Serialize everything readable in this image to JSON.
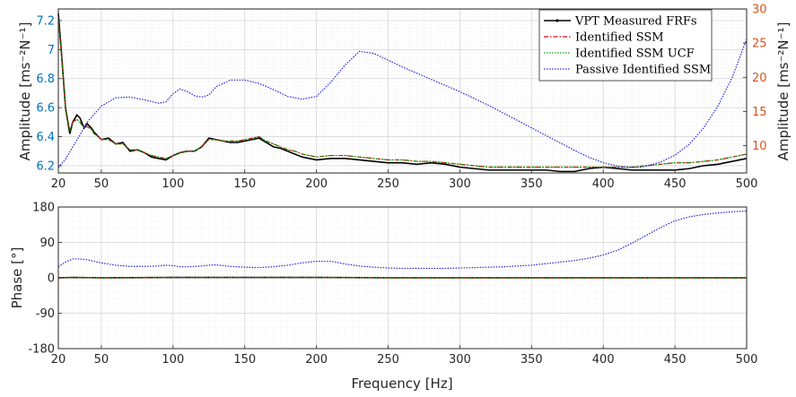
{
  "chart_data": [
    {
      "type": "line",
      "panel": "amplitude",
      "title": "",
      "xlabel": "",
      "ylabel_left": "Amplitude [ms⁻²N⁻¹]",
      "ylabel_right": "Amplitude [ms⁻²N⁻¹]",
      "left_axis_color": "#0072BD",
      "right_axis_color": "#D95319",
      "xlim": [
        20,
        500
      ],
      "ylim_left": [
        6.15,
        7.28
      ],
      "ylim_right": [
        6,
        30
      ],
      "xticks": [
        "20",
        "50",
        "100",
        "150",
        "200",
        "250",
        "300",
        "350",
        "400",
        "450",
        "500"
      ],
      "yticks_left": [
        "6.2",
        "6.4",
        "6.6",
        "6.8",
        "7",
        "7.2"
      ],
      "yticks_right": [
        "10",
        "15",
        "20",
        "25",
        "30"
      ],
      "grid": true,
      "legend_position": "top-right",
      "series": [
        {
          "name": "VPT Measured FRFs",
          "color": "#000000",
          "style": "solid",
          "axis": "left",
          "x": [
            20,
            22,
            25,
            28,
            30,
            33,
            35,
            38,
            40,
            43,
            45,
            48,
            50,
            55,
            60,
            65,
            70,
            75,
            80,
            85,
            90,
            95,
            100,
            105,
            110,
            115,
            120,
            125,
            130,
            135,
            140,
            145,
            150,
            155,
            160,
            165,
            170,
            175,
            180,
            185,
            190,
            200,
            210,
            220,
            230,
            240,
            250,
            260,
            270,
            280,
            290,
            300,
            310,
            320,
            330,
            340,
            350,
            360,
            370,
            380,
            390,
            400,
            410,
            420,
            430,
            440,
            450,
            460,
            470,
            480,
            490,
            500
          ],
          "y": [
            7.25,
            7.0,
            6.6,
            6.42,
            6.5,
            6.55,
            6.53,
            6.46,
            6.49,
            6.46,
            6.43,
            6.4,
            6.38,
            6.39,
            6.35,
            6.36,
            6.3,
            6.31,
            6.29,
            6.26,
            6.25,
            6.24,
            6.27,
            6.29,
            6.3,
            6.3,
            6.33,
            6.39,
            6.38,
            6.37,
            6.36,
            6.36,
            6.37,
            6.38,
            6.39,
            6.36,
            6.33,
            6.32,
            6.3,
            6.28,
            6.26,
            6.24,
            6.25,
            6.25,
            6.24,
            6.23,
            6.22,
            6.22,
            6.21,
            6.22,
            6.21,
            6.19,
            6.18,
            6.17,
            6.17,
            6.17,
            6.17,
            6.17,
            6.16,
            6.16,
            6.18,
            6.19,
            6.18,
            6.17,
            6.17,
            6.17,
            6.17,
            6.18,
            6.2,
            6.21,
            6.23,
            6.25
          ]
        },
        {
          "name": "Identified SSM",
          "color": "#E00000",
          "style": "dashdot",
          "axis": "left",
          "x": [
            20,
            22,
            25,
            28,
            30,
            33,
            35,
            38,
            40,
            43,
            45,
            48,
            50,
            55,
            60,
            65,
            70,
            75,
            80,
            85,
            90,
            95,
            100,
            105,
            110,
            115,
            120,
            125,
            130,
            135,
            140,
            145,
            150,
            155,
            160,
            165,
            170,
            175,
            180,
            185,
            190,
            200,
            210,
            220,
            230,
            240,
            250,
            260,
            270,
            280,
            290,
            300,
            310,
            320,
            330,
            340,
            350,
            360,
            370,
            380,
            390,
            400,
            410,
            420,
            430,
            440,
            450,
            460,
            470,
            480,
            490,
            500
          ],
          "y": [
            7.22,
            6.98,
            6.6,
            6.44,
            6.5,
            6.52,
            6.5,
            6.46,
            6.47,
            6.45,
            6.42,
            6.4,
            6.38,
            6.38,
            6.35,
            6.35,
            6.31,
            6.31,
            6.29,
            6.27,
            6.26,
            6.25,
            6.27,
            6.29,
            6.3,
            6.3,
            6.33,
            6.38,
            6.38,
            6.37,
            6.37,
            6.37,
            6.38,
            6.39,
            6.4,
            6.37,
            6.35,
            6.33,
            6.31,
            6.3,
            6.28,
            6.26,
            6.27,
            6.27,
            6.26,
            6.25,
            6.24,
            6.24,
            6.23,
            6.23,
            6.22,
            6.21,
            6.2,
            6.19,
            6.19,
            6.19,
            6.19,
            6.19,
            6.19,
            6.19,
            6.19,
            6.19,
            6.19,
            6.19,
            6.2,
            6.21,
            6.22,
            6.22,
            6.23,
            6.24,
            6.26,
            6.28
          ]
        },
        {
          "name": "Identified SSM UCF",
          "color": "#00A000",
          "style": "dotted",
          "axis": "left",
          "x": [
            20,
            22,
            25,
            28,
            30,
            33,
            35,
            38,
            40,
            43,
            45,
            48,
            50,
            55,
            60,
            65,
            70,
            75,
            80,
            85,
            90,
            95,
            100,
            105,
            110,
            115,
            120,
            125,
            130,
            135,
            140,
            145,
            150,
            155,
            160,
            165,
            170,
            175,
            180,
            185,
            190,
            200,
            210,
            220,
            230,
            240,
            250,
            260,
            270,
            280,
            290,
            300,
            310,
            320,
            330,
            340,
            350,
            360,
            370,
            380,
            390,
            400,
            410,
            420,
            430,
            440,
            450,
            460,
            470,
            480,
            490,
            500
          ],
          "y": [
            7.22,
            6.98,
            6.6,
            6.44,
            6.5,
            6.52,
            6.5,
            6.46,
            6.47,
            6.45,
            6.42,
            6.4,
            6.38,
            6.38,
            6.35,
            6.35,
            6.31,
            6.31,
            6.29,
            6.27,
            6.26,
            6.25,
            6.27,
            6.29,
            6.3,
            6.3,
            6.33,
            6.38,
            6.38,
            6.37,
            6.37,
            6.37,
            6.38,
            6.39,
            6.4,
            6.37,
            6.35,
            6.33,
            6.31,
            6.3,
            6.28,
            6.26,
            6.27,
            6.27,
            6.26,
            6.25,
            6.24,
            6.24,
            6.23,
            6.23,
            6.22,
            6.21,
            6.2,
            6.19,
            6.19,
            6.19,
            6.19,
            6.19,
            6.19,
            6.19,
            6.19,
            6.19,
            6.19,
            6.19,
            6.2,
            6.21,
            6.22,
            6.22,
            6.23,
            6.24,
            6.26,
            6.28
          ]
        },
        {
          "name": "Passive Identified SSM",
          "color": "#2020E0",
          "style": "dotted",
          "axis": "right",
          "x": [
            20,
            25,
            30,
            35,
            40,
            50,
            60,
            70,
            80,
            90,
            95,
            100,
            105,
            110,
            115,
            120,
            125,
            130,
            140,
            150,
            160,
            170,
            180,
            190,
            200,
            210,
            220,
            230,
            240,
            250,
            260,
            270,
            280,
            290,
            300,
            310,
            320,
            330,
            340,
            350,
            360,
            370,
            380,
            390,
            400,
            410,
            420,
            425,
            430,
            440,
            450,
            460,
            470,
            480,
            490,
            500
          ],
          "y": [
            6.8,
            8.0,
            9.8,
            11.5,
            13.4,
            15.8,
            17.0,
            17.1,
            16.7,
            16.2,
            16.4,
            17.6,
            18.3,
            17.9,
            17.3,
            17.1,
            17.4,
            18.6,
            19.6,
            19.6,
            19.1,
            18.2,
            17.2,
            16.8,
            17.2,
            19.3,
            21.8,
            23.8,
            23.5,
            22.5,
            21.5,
            20.6,
            19.7,
            18.8,
            17.9,
            16.9,
            15.9,
            14.8,
            13.7,
            12.6,
            11.5,
            10.4,
            9.3,
            8.3,
            7.5,
            7.0,
            6.8,
            6.8,
            7.0,
            7.6,
            8.6,
            10.2,
            12.6,
            15.8,
            20.0,
            25.6
          ]
        }
      ]
    },
    {
      "type": "line",
      "panel": "phase",
      "title": "",
      "xlabel": "Frequency [Hz]",
      "ylabel": "Phase [°]",
      "xlim": [
        20,
        500
      ],
      "ylim": [
        -180,
        180
      ],
      "xticks": [
        "20",
        "50",
        "100",
        "150",
        "200",
        "250",
        "300",
        "350",
        "400",
        "450",
        "500"
      ],
      "yticks": [
        "180",
        "90",
        "0",
        "-90",
        "-180"
      ],
      "grid": true,
      "series": [
        {
          "color": "#000000",
          "style": "solid",
          "x": [
            20,
            30,
            50,
            100,
            150,
            200,
            250,
            300,
            350,
            400,
            450,
            500
          ],
          "y": [
            0,
            1,
            0,
            1,
            1,
            1,
            0,
            0,
            0,
            0,
            0,
            0
          ]
        },
        {
          "color": "#E00000",
          "style": "dashdot",
          "x": [
            20,
            30,
            50,
            100,
            150,
            200,
            250,
            300,
            350,
            400,
            450,
            500
          ],
          "y": [
            0,
            1,
            0,
            1,
            1,
            1,
            0,
            0,
            0,
            0,
            0,
            0
          ]
        },
        {
          "color": "#00A000",
          "style": "dotted",
          "x": [
            20,
            30,
            50,
            100,
            150,
            200,
            250,
            300,
            350,
            400,
            450,
            500
          ],
          "y": [
            0,
            1,
            0,
            1,
            1,
            1,
            0,
            0,
            0,
            0,
            0,
            0
          ]
        },
        {
          "color": "#2020E0",
          "style": "dotted",
          "x": [
            20,
            25,
            30,
            35,
            40,
            45,
            50,
            60,
            70,
            80,
            90,
            95,
            100,
            105,
            110,
            120,
            125,
            130,
            135,
            140,
            150,
            160,
            170,
            180,
            190,
            200,
            210,
            215,
            220,
            230,
            240,
            250,
            260,
            270,
            280,
            290,
            300,
            310,
            320,
            330,
            340,
            350,
            360,
            370,
            380,
            390,
            400,
            410,
            420,
            430,
            440,
            450,
            460,
            470,
            480,
            490,
            500
          ],
          "y": [
            28,
            40,
            48,
            48,
            46,
            42,
            38,
            32,
            29,
            29,
            30,
            32,
            31,
            28,
            28,
            30,
            32,
            33,
            31,
            29,
            27,
            26,
            28,
            32,
            38,
            42,
            42,
            39,
            35,
            30,
            27,
            25,
            24,
            24,
            24,
            24,
            25,
            26,
            27,
            28,
            30,
            32,
            36,
            40,
            44,
            50,
            58,
            70,
            88,
            108,
            128,
            145,
            155,
            161,
            165,
            168,
            170
          ]
        }
      ]
    }
  ]
}
